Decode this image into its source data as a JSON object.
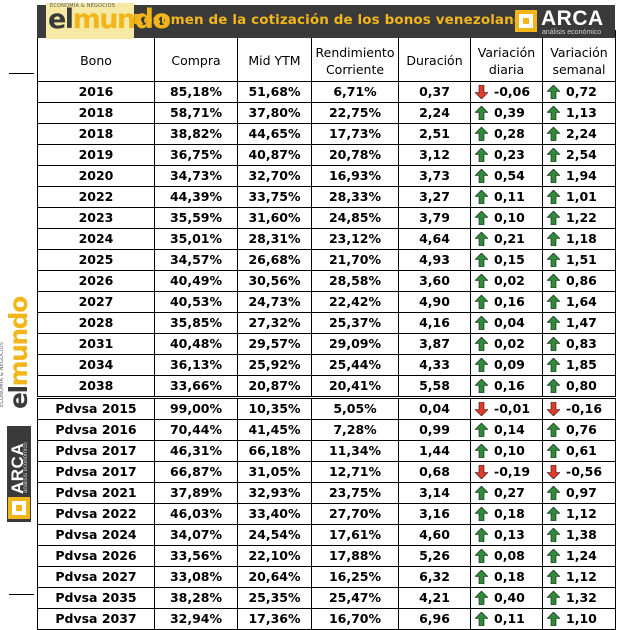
{
  "banner": {
    "title": "Resumen de la cotización de los bonos venezolanos",
    "background": "#3a3a3a",
    "title_color": "#f2b51a"
  },
  "logos": {
    "elmundo": {
      "word_el": "el",
      "word_mundo": "mundo",
      "tagline": "ECONOMÍA & NEGOCIOS"
    },
    "arca": {
      "name": "ARCA",
      "tagline": "análisis económico"
    }
  },
  "colors": {
    "up": "#2f8a3a",
    "down": "#e03a2a",
    "accent": "#f2b51a"
  },
  "table": {
    "headers": [
      "Bono",
      "Compra",
      "Mid YTM",
      "Rendimiento Corriente",
      "Duración",
      "Variación diaria",
      "Variación semanal"
    ],
    "rows": [
      {
        "bono": "2016",
        "compra": "85,18%",
        "ytm": "51,68%",
        "rend": "6,71%",
        "dur": "0,37",
        "vd": "-0,06",
        "vd_dir": "down",
        "vs": "0,72",
        "vs_dir": "up"
      },
      {
        "bono": "2018",
        "compra": "58,71%",
        "ytm": "37,80%",
        "rend": "22,75%",
        "dur": "2,24",
        "vd": "0,39",
        "vd_dir": "up",
        "vs": "1,13",
        "vs_dir": "up"
      },
      {
        "bono": "2018",
        "compra": "38,82%",
        "ytm": "44,65%",
        "rend": "17,73%",
        "dur": "2,51",
        "vd": "0,28",
        "vd_dir": "up",
        "vs": "2,24",
        "vs_dir": "up"
      },
      {
        "bono": "2019",
        "compra": "36,75%",
        "ytm": "40,87%",
        "rend": "20,78%",
        "dur": "3,12",
        "vd": "0,23",
        "vd_dir": "up",
        "vs": "2,54",
        "vs_dir": "up"
      },
      {
        "bono": "2020",
        "compra": "34,73%",
        "ytm": "32,70%",
        "rend": "16,93%",
        "dur": "3,73",
        "vd": "0,54",
        "vd_dir": "up",
        "vs": "1,94",
        "vs_dir": "up"
      },
      {
        "bono": "2022",
        "compra": "44,39%",
        "ytm": "33,75%",
        "rend": "28,33%",
        "dur": "3,27",
        "vd": "0,11",
        "vd_dir": "up",
        "vs": "1,01",
        "vs_dir": "up"
      },
      {
        "bono": "2023",
        "compra": "35,59%",
        "ytm": "31,60%",
        "rend": "24,85%",
        "dur": "3,79",
        "vd": "0,10",
        "vd_dir": "up",
        "vs": "1,22",
        "vs_dir": "up"
      },
      {
        "bono": "2024",
        "compra": "35,01%",
        "ytm": "28,31%",
        "rend": "23,12%",
        "dur": "4,64",
        "vd": "0,21",
        "vd_dir": "up",
        "vs": "1,18",
        "vs_dir": "up"
      },
      {
        "bono": "2025",
        "compra": "34,57%",
        "ytm": "26,68%",
        "rend": "21,70%",
        "dur": "4,93",
        "vd": "0,15",
        "vd_dir": "up",
        "vs": "1,51",
        "vs_dir": "up"
      },
      {
        "bono": "2026",
        "compra": "40,49%",
        "ytm": "30,56%",
        "rend": "28,58%",
        "dur": "3,60",
        "vd": "0,02",
        "vd_dir": "up",
        "vs": "0,86",
        "vs_dir": "up"
      },
      {
        "bono": "2027",
        "compra": "40,53%",
        "ytm": "24,73%",
        "rend": "22,42%",
        "dur": "4,90",
        "vd": "0,16",
        "vd_dir": "up",
        "vs": "1,64",
        "vs_dir": "up"
      },
      {
        "bono": "2028",
        "compra": "35,85%",
        "ytm": "27,32%",
        "rend": "25,37%",
        "dur": "4,16",
        "vd": "0,04",
        "vd_dir": "up",
        "vs": "1,47",
        "vs_dir": "up"
      },
      {
        "bono": "2031",
        "compra": "40,48%",
        "ytm": "29,57%",
        "rend": "29,09%",
        "dur": "3,87",
        "vd": "0,02",
        "vd_dir": "up",
        "vs": "0,83",
        "vs_dir": "up"
      },
      {
        "bono": "2034",
        "compra": "36,13%",
        "ytm": "25,92%",
        "rend": "25,44%",
        "dur": "4,33",
        "vd": "0,09",
        "vd_dir": "up",
        "vs": "1,85",
        "vs_dir": "up"
      },
      {
        "bono": "2038",
        "compra": "33,66%",
        "ytm": "20,87%",
        "rend": "20,41%",
        "dur": "5,58",
        "vd": "0,16",
        "vd_dir": "up",
        "vs": "0,80",
        "vs_dir": "up"
      },
      {
        "bono": "Pdvsa 2015",
        "compra": "99,00%",
        "ytm": "10,35%",
        "rend": "5,05%",
        "dur": "0,04",
        "vd": "-0,01",
        "vd_dir": "down",
        "vs": "-0,16",
        "vs_dir": "down"
      },
      {
        "bono": "Pdvsa 2016",
        "compra": "70,44%",
        "ytm": "41,45%",
        "rend": "7,28%",
        "dur": "0,99",
        "vd": "0,14",
        "vd_dir": "up",
        "vs": "0,76",
        "vs_dir": "up"
      },
      {
        "bono": "Pdvsa 2017",
        "compra": "46,31%",
        "ytm": "66,18%",
        "rend": "11,34%",
        "dur": "1,44",
        "vd": "0,10",
        "vd_dir": "up",
        "vs": "0,61",
        "vs_dir": "up"
      },
      {
        "bono": "Pdvsa 2017",
        "compra": "66,87%",
        "ytm": "31,05%",
        "rend": "12,71%",
        "dur": "0,68",
        "vd": "-0,19",
        "vd_dir": "down",
        "vs": "-0,56",
        "vs_dir": "down"
      },
      {
        "bono": "Pdvsa 2021",
        "compra": "37,89%",
        "ytm": "32,93%",
        "rend": "23,75%",
        "dur": "3,14",
        "vd": "0,27",
        "vd_dir": "up",
        "vs": "0,97",
        "vs_dir": "up"
      },
      {
        "bono": "Pdvsa 2022",
        "compra": "46,03%",
        "ytm": "33,40%",
        "rend": "27,70%",
        "dur": "3,16",
        "vd": "0,18",
        "vd_dir": "up",
        "vs": "1,12",
        "vs_dir": "up"
      },
      {
        "bono": "Pdvsa 2024",
        "compra": "34,07%",
        "ytm": "24,54%",
        "rend": "17,61%",
        "dur": "4,60",
        "vd": "0,13",
        "vd_dir": "up",
        "vs": "1,38",
        "vs_dir": "up"
      },
      {
        "bono": "Pdvsa 2026",
        "compra": "33,56%",
        "ytm": "22,10%",
        "rend": "17,88%",
        "dur": "5,26",
        "vd": "0,08",
        "vd_dir": "up",
        "vs": "1,24",
        "vs_dir": "up"
      },
      {
        "bono": "Pdvsa 2027",
        "compra": "33,08%",
        "ytm": "20,64%",
        "rend": "16,25%",
        "dur": "6,32",
        "vd": "0,18",
        "vd_dir": "up",
        "vs": "1,12",
        "vs_dir": "up"
      },
      {
        "bono": "Pdvsa 2035",
        "compra": "38,28%",
        "ytm": "25,35%",
        "rend": "25,47%",
        "dur": "4,21",
        "vd": "0,40",
        "vd_dir": "up",
        "vs": "1,32",
        "vs_dir": "up"
      },
      {
        "bono": "Pdvsa 2037",
        "compra": "32,94%",
        "ytm": "17,36%",
        "rend": "16,70%",
        "dur": "6,96",
        "vd": "0,11",
        "vd_dir": "up",
        "vs": "1,10",
        "vs_dir": "up"
      }
    ]
  }
}
